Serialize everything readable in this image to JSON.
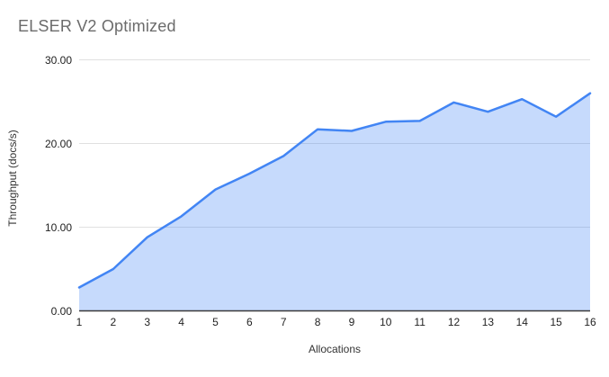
{
  "title": "ELSER V2 Optimized",
  "chart_data": {
    "type": "area",
    "title": "ELSER V2 Optimized",
    "categories": [
      1,
      2,
      3,
      4,
      5,
      6,
      7,
      8,
      9,
      10,
      11,
      12,
      13,
      14,
      15,
      16
    ],
    "series": [
      {
        "name": "Throughput (docs/s)",
        "values": [
          2.8,
          5.0,
          8.8,
          11.3,
          14.5,
          16.4,
          18.5,
          21.7,
          21.5,
          22.6,
          22.7,
          24.9,
          23.8,
          25.3,
          23.2,
          26.0
        ]
      }
    ],
    "xlabel": "Allocations",
    "ylabel": "Throughput (docs/s)",
    "xtick_labels": [
      "1",
      "2",
      "3",
      "4",
      "5",
      "6",
      "7",
      "8",
      "9",
      "10",
      "11",
      "12",
      "13",
      "14",
      "15",
      "16"
    ],
    "yticks": [
      0,
      10,
      20,
      30
    ],
    "ytick_labels": [
      "0.00",
      "10.00",
      "20.00",
      "30.00"
    ],
    "ylim": [
      0,
      30
    ],
    "grid": "horizontal",
    "legend": "none",
    "colors": {
      "line": "#4285f4",
      "fill": "rgba(66,133,244,0.30)",
      "grid": "#e0e0e0",
      "axis_line": "#3a3a3a",
      "title": "#6b6b6b",
      "tick": "#222222",
      "axis_title": "#333333",
      "background": "#ffffff"
    }
  }
}
